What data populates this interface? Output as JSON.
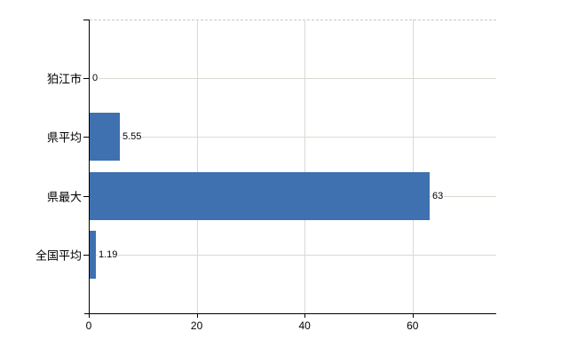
{
  "chart_data": {
    "type": "bar",
    "orientation": "horizontal",
    "title": "",
    "xlabel": "",
    "ylabel": "",
    "categories": [
      "狛江市",
      "県平均",
      "県最大",
      "全国平均"
    ],
    "values": [
      0,
      5.55,
      63,
      1.19
    ],
    "value_labels": [
      "0",
      "5.55",
      "63",
      "1.19"
    ],
    "xlim": [
      0,
      75.5
    ],
    "x_ticks": [
      0,
      20,
      40,
      60
    ],
    "grid": true,
    "legend": "none",
    "colors": {
      "bar": "#3f70af",
      "gridline": "#d6dcd2",
      "top_border": "#c9c6cb",
      "axis": "#000000",
      "text": "#000000",
      "background": "#ffffff"
    }
  }
}
